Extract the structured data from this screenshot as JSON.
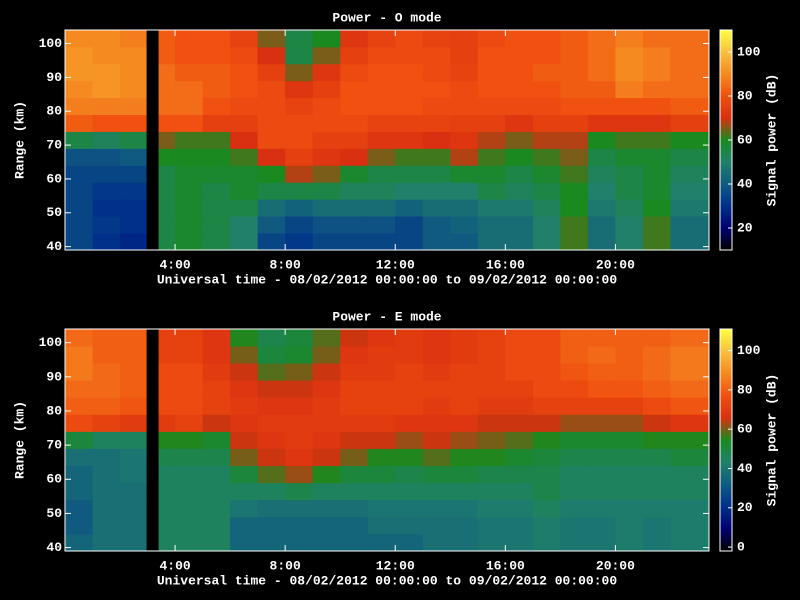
{
  "chart_data": [
    {
      "type": "heatmap",
      "title": "Power - O mode",
      "xlabel": "Universal time - 08/02/2012 00:00:00 to 09/02/2012 00:00:00",
      "ylabel": "Range (km)",
      "colorbar_label": "Signal power (dB)",
      "x": [
        0,
        1,
        2,
        2.95,
        3.4,
        4,
        5,
        6,
        7,
        8,
        9,
        10,
        11,
        12,
        13,
        14,
        15,
        16,
        17,
        18,
        19,
        20,
        21,
        22
      ],
      "y": [
        39,
        44,
        49,
        54,
        59,
        64,
        69,
        74,
        79,
        84,
        89,
        94,
        99
      ],
      "z": [
        [
          35,
          35,
          35,
          35,
          35,
          38,
          55,
          82,
          88,
          90,
          92,
          92,
          90
        ],
        [
          30,
          32,
          30,
          32,
          35,
          38,
          52,
          80,
          88,
          92,
          92,
          90,
          90
        ],
        [
          28,
          30,
          30,
          32,
          35,
          40,
          55,
          80,
          88,
          90,
          90,
          90,
          88
        ],
        [
          null,
          null,
          null,
          null,
          null,
          null,
          null,
          null,
          null,
          null,
          null,
          null,
          null
        ],
        [
          55,
          55,
          55,
          55,
          55,
          60,
          65,
          80,
          85,
          85,
          85,
          82,
          82
        ],
        [
          58,
          58,
          58,
          58,
          58,
          60,
          62,
          80,
          85,
          85,
          82,
          80,
          80
        ],
        [
          55,
          55,
          55,
          55,
          58,
          60,
          62,
          75,
          80,
          82,
          82,
          80,
          80
        ],
        [
          50,
          50,
          55,
          58,
          58,
          62,
          70,
          75,
          78,
          80,
          80,
          78,
          76
        ],
        [
          35,
          40,
          45,
          55,
          60,
          70,
          78,
          78,
          78,
          78,
          75,
          70,
          65
        ],
        [
          32,
          35,
          42,
          55,
          68,
          75,
          78,
          78,
          76,
          72,
          65,
          55,
          55
        ],
        [
          35,
          38,
          45,
          55,
          65,
          72,
          75,
          78,
          78,
          75,
          72,
          65,
          60
        ],
        [
          35,
          38,
          45,
          52,
          58,
          70,
          75,
          78,
          80,
          80,
          78,
          75,
          72
        ],
        [
          35,
          38,
          45,
          52,
          55,
          65,
          72,
          76,
          80,
          80,
          80,
          78,
          76
        ],
        [
          35,
          35,
          42,
          50,
          55,
          62,
          72,
          76,
          80,
          80,
          80,
          78,
          78
        ],
        [
          40,
          40,
          45,
          50,
          55,
          62,
          70,
          76,
          78,
          80,
          78,
          78,
          76
        ],
        [
          40,
          42,
          45,
          50,
          58,
          68,
          72,
          75,
          78,
          78,
          76,
          75,
          75
        ],
        [
          45,
          45,
          48,
          55,
          58,
          62,
          68,
          75,
          78,
          80,
          80,
          80,
          78
        ],
        [
          45,
          45,
          48,
          52,
          55,
          60,
          65,
          72,
          78,
          80,
          80,
          80,
          80
        ],
        [
          50,
          50,
          52,
          55,
          58,
          62,
          68,
          75,
          78,
          80,
          82,
          80,
          80
        ],
        [
          62,
          62,
          60,
          60,
          62,
          65,
          68,
          75,
          80,
          82,
          82,
          82,
          82
        ],
        [
          45,
          45,
          48,
          50,
          52,
          55,
          60,
          72,
          80,
          82,
          85,
          85,
          85
        ],
        [
          50,
          50,
          52,
          55,
          55,
          58,
          62,
          72,
          80,
          88,
          90,
          90,
          88
        ],
        [
          62,
          62,
          60,
          58,
          58,
          58,
          62,
          72,
          80,
          85,
          88,
          88,
          85
        ],
        [
          45,
          45,
          48,
          50,
          52,
          55,
          60,
          75,
          82,
          85,
          85,
          85,
          85
        ]
      ],
      "xlim": [
        0,
        23.4
      ],
      "ylim": [
        39,
        104
      ],
      "xticks": [
        {
          "value": 4,
          "label": "4:00"
        },
        {
          "value": 8,
          "label": "8:00"
        },
        {
          "value": 12,
          "label": "12:00"
        },
        {
          "value": 16,
          "label": "16:00"
        },
        {
          "value": 20,
          "label": "20:00"
        }
      ],
      "yticks": [
        40,
        50,
        60,
        70,
        80,
        90,
        100
      ],
      "clim": [
        10,
        110
      ],
      "cticks": [
        20,
        40,
        60,
        80,
        100
      ],
      "colormap": [
        "#000000",
        "#000070",
        "#00308a",
        "#105a80",
        "#20806a",
        "#1a8a20",
        "#d83010",
        "#f05010",
        "#f58a20",
        "#f8c040",
        "#ffff40"
      ]
    },
    {
      "type": "heatmap",
      "title": "Power - E mode",
      "xlabel": "Universal time - 08/02/2012 00:00:00 to 09/02/2012 00:00:00",
      "ylabel": "Range (km)",
      "colorbar_label": "Signal power (dB)",
      "x": [
        0,
        1,
        2,
        2.95,
        3.4,
        4,
        5,
        6,
        7,
        8,
        9,
        10,
        11,
        12,
        13,
        14,
        15,
        16,
        17,
        18,
        19,
        20,
        21,
        22
      ],
      "y": [
        39,
        44,
        49,
        54,
        59,
        64,
        69,
        74,
        79,
        84,
        89,
        94,
        99
      ],
      "z": [
        [
          35,
          32,
          32,
          35,
          35,
          38,
          50,
          75,
          80,
          82,
          85,
          85,
          82
        ],
        [
          38,
          38,
          38,
          38,
          38,
          38,
          45,
          72,
          80,
          82,
          82,
          80,
          80
        ],
        [
          38,
          38,
          38,
          38,
          40,
          40,
          45,
          70,
          78,
          80,
          80,
          80,
          80
        ],
        [
          null,
          null,
          null,
          null,
          null,
          null,
          null,
          null,
          null,
          null,
          null,
          null,
          null
        ],
        [
          45,
          45,
          45,
          45,
          45,
          48,
          55,
          70,
          75,
          75,
          75,
          72,
          72
        ],
        [
          45,
          45,
          45,
          45,
          45,
          48,
          55,
          72,
          75,
          75,
          75,
          72,
          72
        ],
        [
          45,
          45,
          45,
          45,
          45,
          48,
          52,
          65,
          72,
          72,
          70,
          68,
          68
        ],
        [
          35,
          35,
          40,
          45,
          50,
          60,
          65,
          68,
          70,
          68,
          65,
          60,
          55
        ],
        [
          35,
          35,
          38,
          45,
          58,
          65,
          68,
          70,
          68,
          65,
          58,
          50,
          48
        ],
        [
          35,
          35,
          38,
          48,
          62,
          68,
          70,
          70,
          68,
          65,
          60,
          52,
          50
        ],
        [
          35,
          35,
          38,
          45,
          55,
          65,
          68,
          70,
          70,
          68,
          65,
          60,
          58
        ],
        [
          35,
          35,
          38,
          45,
          50,
          60,
          65,
          70,
          72,
          72,
          70,
          68,
          65
        ],
        [
          35,
          38,
          40,
          45,
          50,
          55,
          65,
          70,
          72,
          72,
          70,
          70,
          68
        ],
        [
          35,
          38,
          40,
          45,
          48,
          55,
          62,
          68,
          72,
          72,
          72,
          70,
          70
        ],
        [
          38,
          38,
          40,
          45,
          50,
          58,
          65,
          68,
          70,
          72,
          70,
          68,
          68
        ],
        [
          38,
          38,
          40,
          45,
          50,
          55,
          62,
          68,
          72,
          72,
          72,
          70,
          70
        ],
        [
          40,
          40,
          42,
          45,
          48,
          55,
          60,
          65,
          70,
          72,
          72,
          72,
          72
        ],
        [
          40,
          40,
          42,
          45,
          48,
          52,
          58,
          65,
          70,
          72,
          75,
          75,
          75
        ],
        [
          42,
          42,
          45,
          48,
          48,
          50,
          55,
          65,
          72,
          75,
          75,
          75,
          75
        ],
        [
          40,
          40,
          42,
          45,
          45,
          48,
          52,
          62,
          72,
          75,
          78,
          80,
          80
        ],
        [
          40,
          40,
          42,
          45,
          45,
          48,
          52,
          62,
          72,
          78,
          80,
          82,
          80
        ],
        [
          42,
          42,
          42,
          45,
          45,
          48,
          52,
          62,
          72,
          78,
          80,
          80,
          80
        ],
        [
          40,
          40,
          42,
          45,
          45,
          48,
          55,
          65,
          75,
          80,
          82,
          82,
          80
        ],
        [
          42,
          42,
          42,
          45,
          45,
          50,
          55,
          68,
          78,
          82,
          85,
          85,
          82
        ]
      ],
      "xlim": [
        0,
        23.4
      ],
      "ylim": [
        39,
        104
      ],
      "xticks": [
        {
          "value": 4,
          "label": "4:00"
        },
        {
          "value": 8,
          "label": "8:00"
        },
        {
          "value": 12,
          "label": "12:00"
        },
        {
          "value": 16,
          "label": "16:00"
        },
        {
          "value": 20,
          "label": "20:00"
        }
      ],
      "yticks": [
        40,
        50,
        60,
        70,
        80,
        90,
        100
      ],
      "clim": [
        -2,
        111
      ],
      "cticks": [
        0,
        20,
        40,
        60,
        80,
        100
      ],
      "colormap": [
        "#000000",
        "#000070",
        "#00308a",
        "#105a80",
        "#20806a",
        "#1a8a20",
        "#d83010",
        "#f05010",
        "#f58a20",
        "#f8c040",
        "#ffff40"
      ]
    }
  ]
}
